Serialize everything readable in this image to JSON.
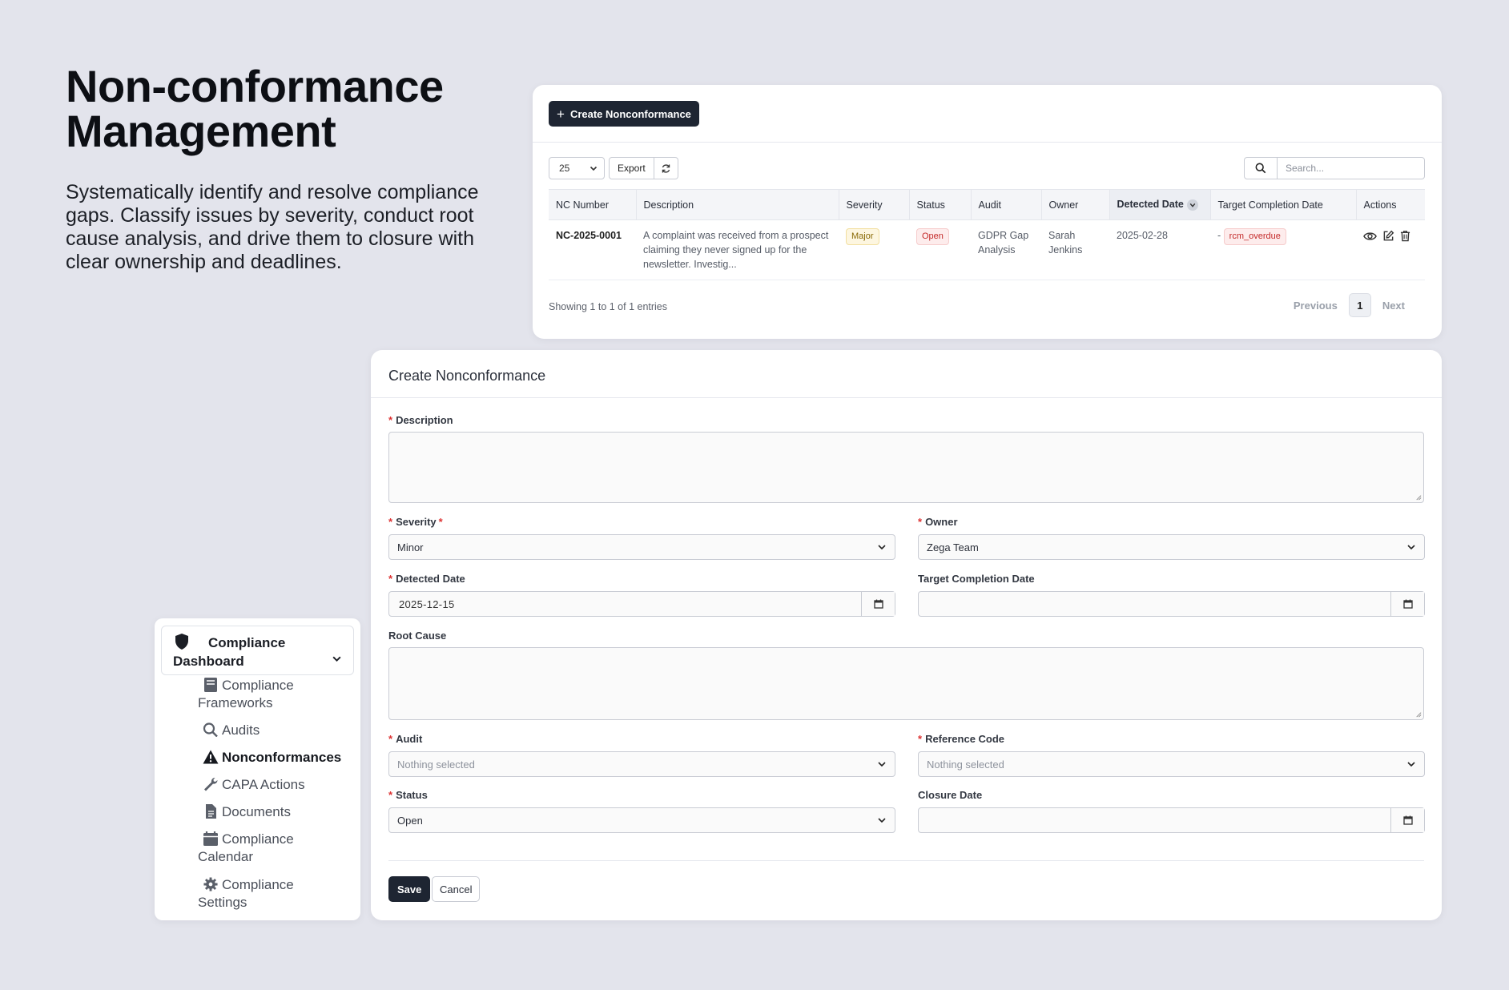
{
  "hero": {
    "title_line1": "Non-conformance",
    "title_line2": "Management",
    "description": "Systematically identify and resolve compliance gaps. Classify issues by severity, conduct root cause analysis, and drive them to closure with clear ownership and deadlines."
  },
  "list": {
    "create_button": "Create Nonconformance",
    "page_size": "25",
    "export_label": "Export",
    "search_placeholder": "Search...",
    "columns": [
      "NC Number",
      "Description",
      "Severity",
      "Status",
      "Audit",
      "Owner",
      "Detected Date",
      "Target Completion Date",
      "Actions"
    ],
    "rows": [
      {
        "nc_number": "NC-2025-0001",
        "description": "A complaint was received from a prospect claiming they never signed up for the newsletter. Investig...",
        "severity": "Major",
        "status": "Open",
        "audit": "GDPR Gap Analysis",
        "owner": "Sarah Jenkins",
        "detected_date": "2025-02-28",
        "target_prefix": "-",
        "target_badge": "rcm_overdue"
      }
    ],
    "showing": "Showing 1 to 1 of 1 entries",
    "pagination": {
      "previous": "Previous",
      "current": "1",
      "next": "Next"
    }
  },
  "form": {
    "title": "Create Nonconformance",
    "description_label": "Description",
    "severity_label": "Severity",
    "severity_value": "Minor",
    "owner_label": "Owner",
    "owner_value": "Zega Team",
    "detected_date_label": "Detected Date",
    "detected_date_value": "2025-12-15",
    "target_completion_label": "Target Completion Date",
    "target_completion_value": "",
    "root_cause_label": "Root Cause",
    "audit_label": "Audit",
    "audit_placeholder": "Nothing selected",
    "reference_code_label": "Reference Code",
    "reference_code_placeholder": "Nothing selected",
    "status_label": "Status",
    "status_value": "Open",
    "closure_date_label": "Closure Date",
    "closure_date_value": "",
    "save_label": "Save",
    "cancel_label": "Cancel"
  },
  "sidebar": {
    "header_line1": "Compliance",
    "header_line2": "Dashboard",
    "items": [
      {
        "line1": "Compliance",
        "line2": "Frameworks",
        "icon": "book-icon"
      },
      {
        "line1": "Audits",
        "line2": "",
        "icon": "search-icon"
      },
      {
        "line1": "Nonconformances",
        "line2": "",
        "icon": "warning-icon"
      },
      {
        "line1": "CAPA Actions",
        "line2": "",
        "icon": "wrench-icon"
      },
      {
        "line1": "Documents",
        "line2": "",
        "icon": "document-icon"
      },
      {
        "line1": "Compliance",
        "line2": "Calendar",
        "icon": "calendar-icon"
      },
      {
        "line1": "Compliance",
        "line2": "Settings",
        "icon": "gear-icon"
      }
    ]
  },
  "colors": {
    "page_bg": "#e3e4ec",
    "primary_button": "#1e2532",
    "required": "#dd3333",
    "badge_major": "#fdf6e0",
    "badge_open": "#fdecec"
  }
}
